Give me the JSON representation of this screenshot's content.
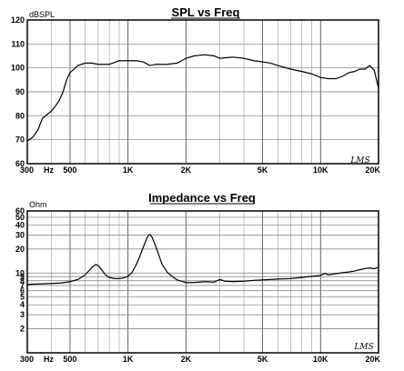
{
  "chart_data": [
    {
      "type": "line",
      "title": "SPL vs Freq",
      "ylabel": "dBSPL",
      "xlabel": "Hz",
      "xscale": "log",
      "xlim": [
        300,
        20000
      ],
      "ylim": [
        60,
        120
      ],
      "grid": true,
      "legend": "none",
      "xtick_labels": [
        {
          "x": 300,
          "label": "300"
        },
        {
          "x": 500,
          "label": "500"
        },
        {
          "x": 1000,
          "label": "1K"
        },
        {
          "x": 2000,
          "label": "2K"
        },
        {
          "x": 5000,
          "label": "5K"
        },
        {
          "x": 10000,
          "label": "10K"
        },
        {
          "x": 20000,
          "label": "20K"
        }
      ],
      "ytick_labels": [
        {
          "y": 60,
          "label": "60"
        },
        {
          "y": 70,
          "label": "70"
        },
        {
          "y": 80,
          "label": "80"
        },
        {
          "y": 90,
          "label": "90"
        },
        {
          "y": 100,
          "label": "100"
        },
        {
          "y": 110,
          "label": "110"
        },
        {
          "y": 120,
          "label": "120"
        }
      ],
      "annotation": "LMS",
      "color": "#000000",
      "x": [
        300,
        320,
        340,
        360,
        380,
        400,
        420,
        440,
        460,
        480,
        500,
        550,
        600,
        650,
        700,
        800,
        900,
        1000,
        1100,
        1200,
        1300,
        1400,
        1600,
        1800,
        2000,
        2200,
        2500,
        2800,
        3000,
        3500,
        4000,
        4500,
        5000,
        5500,
        6000,
        7000,
        8000,
        9000,
        10000,
        11000,
        12000,
        13000,
        14000,
        15000,
        16000,
        17000,
        18000,
        19000,
        20000
      ],
      "y": [
        69.5,
        71,
        74,
        79,
        80.5,
        82,
        84,
        86.5,
        90,
        95,
        98,
        101,
        102,
        102,
        101.5,
        101.5,
        103,
        103,
        103,
        102.5,
        101,
        101.5,
        101.5,
        102,
        104,
        105,
        105.5,
        105,
        104,
        104.5,
        104,
        103,
        102.5,
        102,
        101,
        99.5,
        98.5,
        97.5,
        96,
        95.5,
        95.5,
        96.5,
        98,
        98.5,
        99.5,
        99.5,
        101,
        99,
        91.5
      ]
    },
    {
      "type": "line",
      "title": "Impedance vs Freq",
      "ylabel": "Ohm",
      "xlabel": "Hz",
      "xscale": "log",
      "yscale": "log",
      "xlim": [
        300,
        20000
      ],
      "ylim": [
        1,
        60
      ],
      "grid": true,
      "legend": "none",
      "xtick_labels": [
        {
          "x": 300,
          "label": "300"
        },
        {
          "x": 500,
          "label": "500"
        },
        {
          "x": 1000,
          "label": "1K"
        },
        {
          "x": 2000,
          "label": "2K"
        },
        {
          "x": 5000,
          "label": "5K"
        },
        {
          "x": 10000,
          "label": "10K"
        },
        {
          "x": 20000,
          "label": "20K"
        }
      ],
      "ytick_labels": [
        {
          "y": 2,
          "label": "2"
        },
        {
          "y": 3,
          "label": "3"
        },
        {
          "y": 4,
          "label": "4"
        },
        {
          "y": 5,
          "label": "5"
        },
        {
          "y": 6,
          "label": "6"
        },
        {
          "y": 7,
          "label": "7"
        },
        {
          "y": 8,
          "label": "8"
        },
        {
          "y": 9,
          "label": "9"
        },
        {
          "y": 10,
          "label": "10"
        },
        {
          "y": 20,
          "label": "20"
        },
        {
          "y": 30,
          "label": "30"
        },
        {
          "y": 40,
          "label": "40"
        },
        {
          "y": 50,
          "label": "50"
        },
        {
          "y": 60,
          "label": "60"
        }
      ],
      "annotation": "LMS",
      "color": "#000000",
      "x": [
        300,
        350,
        400,
        450,
        500,
        550,
        600,
        650,
        680,
        700,
        730,
        760,
        800,
        850,
        900,
        950,
        1000,
        1050,
        1100,
        1150,
        1200,
        1250,
        1280,
        1300,
        1330,
        1360,
        1400,
        1450,
        1500,
        1600,
        1700,
        1800,
        2000,
        2200,
        2500,
        2800,
        3000,
        3200,
        3500,
        4000,
        4500,
        5000,
        6000,
        7000,
        8000,
        9000,
        10000,
        10500,
        11000,
        12000,
        13000,
        14000,
        15000,
        16000,
        17000,
        18000,
        19000,
        20000
      ],
      "y": [
        7.2,
        7.3,
        7.4,
        7.5,
        7.8,
        8.3,
        9.5,
        11.8,
        12.8,
        12.4,
        11,
        9.6,
        8.8,
        8.5,
        8.5,
        8.7,
        9.1,
        10.2,
        12.5,
        16,
        21,
        27,
        30,
        30.3,
        28.5,
        25,
        21,
        16.5,
        13,
        10.2,
        9,
        8.2,
        7.6,
        7.6,
        7.8,
        7.7,
        8.3,
        7.9,
        7.8,
        7.9,
        8.1,
        8.2,
        8.4,
        8.5,
        8.8,
        9.1,
        9.3,
        9.9,
        9.5,
        9.8,
        10.1,
        10.3,
        10.6,
        11,
        11.4,
        11.6,
        11.3,
        11.8
      ]
    }
  ]
}
